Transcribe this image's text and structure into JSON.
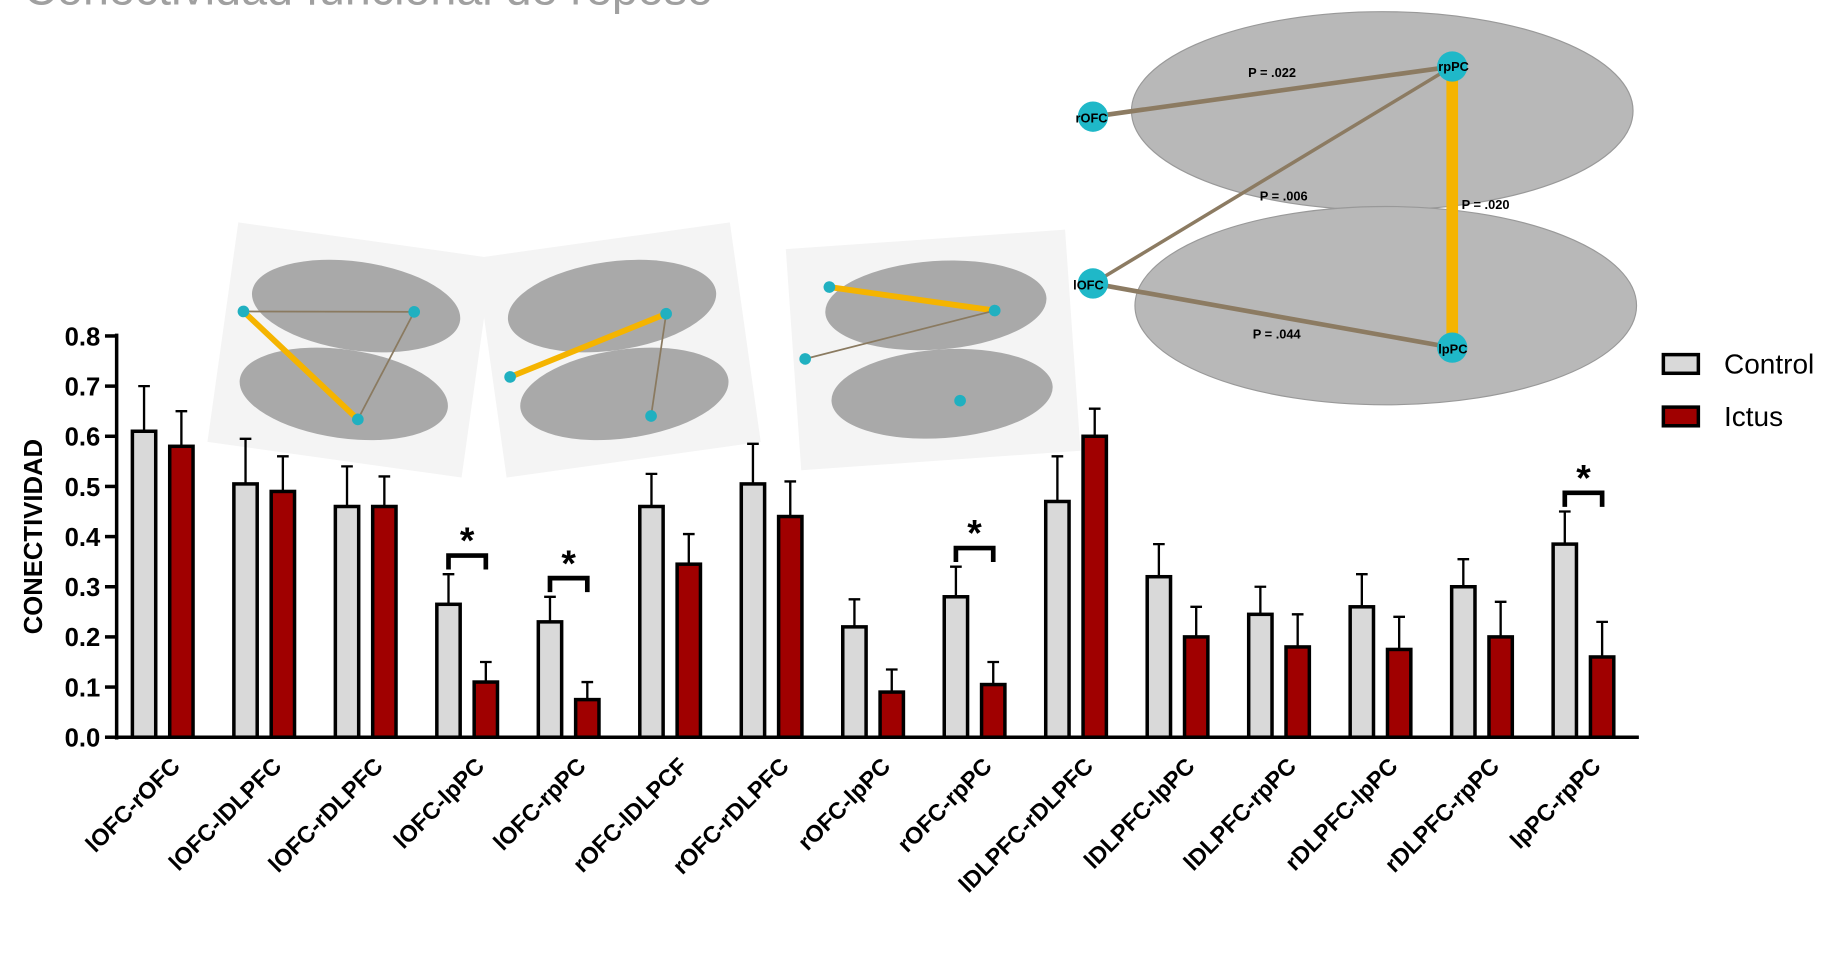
{
  "chart_data": {
    "type": "bar",
    "title": "Conectividad funcional de reposo",
    "y_label": "CONECTIVIDAD",
    "categories": [
      "lOFC-rOFC",
      "lOFC-lDLPFC",
      "lOFC-rDLPFC",
      "lOFC-lpPC",
      "lOFC-rpPC",
      "rOFC-lDLPCF",
      "rOFC-rDLPFC",
      "rOFC-lpPC",
      "rOFC-rpPC",
      "lDLPFC-rDLPFC",
      "lDLPFC-lpPC",
      "lDLPFC-rpPC",
      "rDLPFC-lpPC",
      "rDLPFC-rpPC",
      "lpPC-rpPC"
    ],
    "series": [
      {
        "name": "Control",
        "color": "#d9d9d9",
        "values": [
          0.61,
          0.505,
          0.46,
          0.265,
          0.23,
          0.46,
          0.505,
          0.22,
          0.28,
          0.47,
          0.32,
          0.245,
          0.26,
          0.3,
          0.385
        ],
        "errors": [
          0.09,
          0.09,
          0.08,
          0.06,
          0.05,
          0.065,
          0.08,
          0.055,
          0.06,
          0.09,
          0.065,
          0.055,
          0.065,
          0.055,
          0.065
        ]
      },
      {
        "name": "Ictus",
        "color": "#a00000",
        "values": [
          0.58,
          0.49,
          0.46,
          0.11,
          0.075,
          0.345,
          0.44,
          0.09,
          0.105,
          0.6,
          0.2,
          0.18,
          0.175,
          0.2,
          0.16
        ],
        "errors": [
          0.07,
          0.07,
          0.06,
          0.04,
          0.035,
          0.06,
          0.07,
          0.045,
          0.045,
          0.055,
          0.06,
          0.065,
          0.065,
          0.07,
          0.07
        ]
      }
    ],
    "significance": [
      false,
      false,
      false,
      true,
      true,
      false,
      false,
      false,
      true,
      false,
      false,
      false,
      false,
      false,
      true
    ],
    "significance_label": "*",
    "ylim": [
      0,
      0.8
    ],
    "yticks": [
      {
        "value": 0,
        "label": "0.0"
      },
      {
        "value": 0.1,
        "label": "0.1"
      },
      {
        "value": 0.2,
        "label": "0.2"
      },
      {
        "value": 0.3,
        "label": "0.3"
      },
      {
        "value": 0.4,
        "label": "0.4"
      },
      {
        "value": 0.5,
        "label": "0.5"
      },
      {
        "value": 0.6,
        "label": "0.6"
      },
      {
        "value": 0.7,
        "label": "0.7"
      },
      {
        "value": 0.8,
        "label": "0.8"
      }
    ],
    "legend": "right",
    "inset": {
      "nodes": [
        "rOFC",
        "lOFC",
        "rpPC",
        "lpPC"
      ],
      "edge_labels": [
        "P = .022",
        "P = .006",
        "P = .020",
        "P = .044"
      ]
    }
  }
}
